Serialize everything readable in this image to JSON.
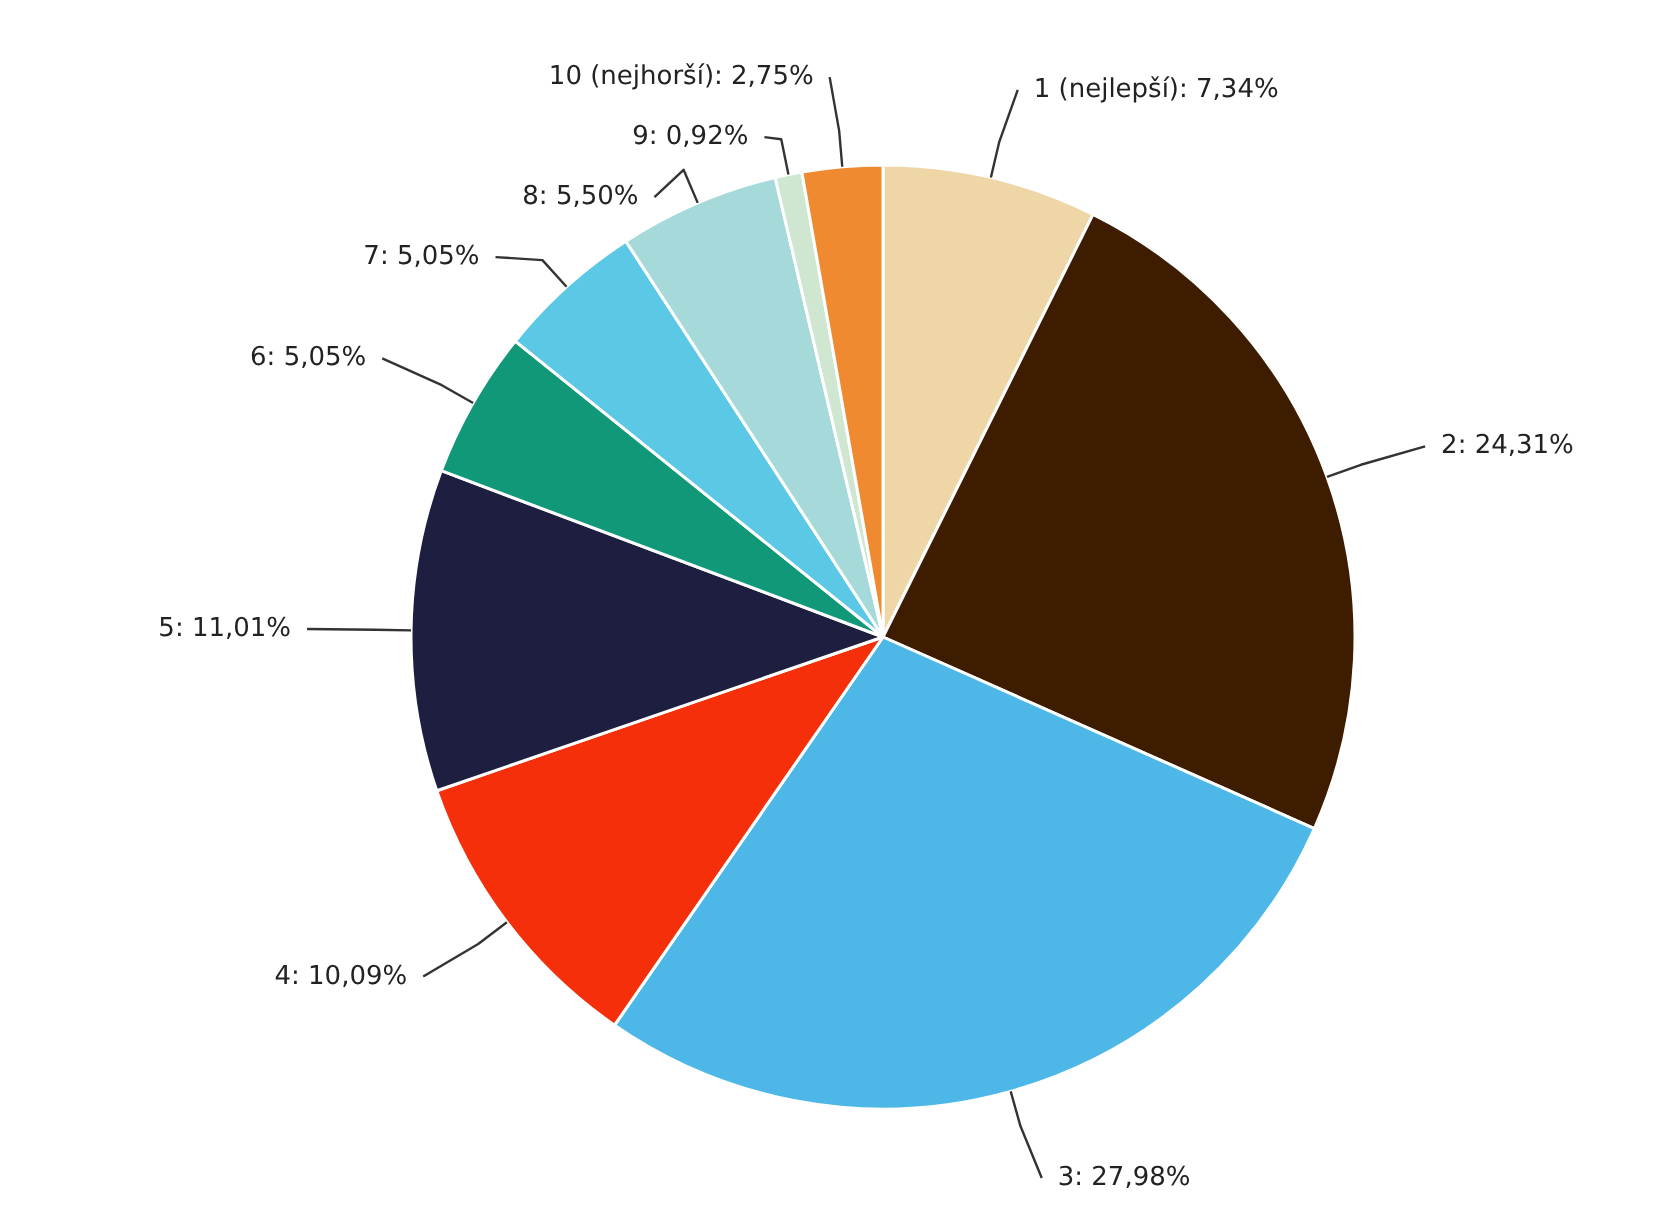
{
  "chart_data": {
    "type": "pie",
    "categories": [
      "1 (nejlepší)",
      "2",
      "3",
      "4",
      "5",
      "6",
      "7",
      "8",
      "9",
      "10 (nejhorší)"
    ],
    "values": [
      7.34,
      24.31,
      27.98,
      10.09,
      11.01,
      5.05,
      5.05,
      5.5,
      0.92,
      2.75
    ],
    "value_labels": [
      "7,34%",
      "24,31%",
      "27,98%",
      "10,09%",
      "11,01%",
      "5,05%",
      "5,05%",
      "5,50%",
      "0,92%",
      "2,75%"
    ],
    "colors": [
      "#efd6a6",
      "#3d1c00",
      "#4db8e8",
      "#f52f0a",
      "#1e1e40",
      "#119878",
      "#5bc8e6",
      "#a6d9d9",
      "#cfe6d0",
      "#f08a30"
    ]
  }
}
